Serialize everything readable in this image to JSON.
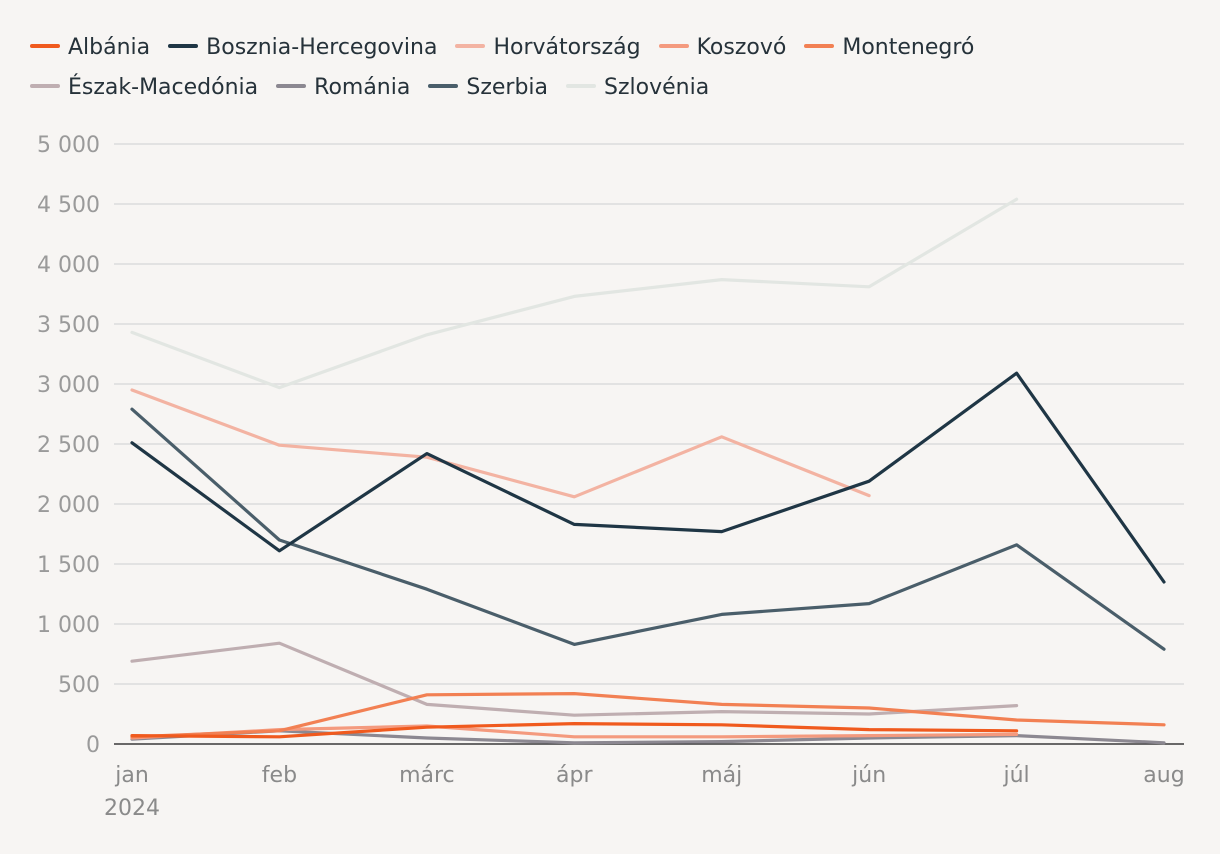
{
  "chart_data": {
    "type": "line",
    "title": "",
    "xlabel": "",
    "ylabel": "",
    "ylim": [
      0,
      5000
    ],
    "yticks": [
      0,
      500,
      1000,
      1500,
      2000,
      2500,
      3000,
      3500,
      4000,
      4500,
      5000
    ],
    "ytick_labels": [
      "0",
      "500",
      "1 000",
      "1 500",
      "2 000",
      "2 500",
      "3 000",
      "3 500",
      "4 000",
      "4 500",
      "5 000"
    ],
    "categories": [
      "jan",
      "feb",
      "márc",
      "ápr",
      "máj",
      "jún",
      "júl",
      "aug"
    ],
    "year_label": "2024",
    "grid": true,
    "legend_position": "top",
    "series": [
      {
        "name": "Albánia",
        "color": "#f05a1e",
        "values": [
          70,
          60,
          140,
          170,
          160,
          120,
          110,
          null
        ]
      },
      {
        "name": "Bosznia-Hercegovina",
        "color": "#1f3645",
        "values": [
          2510,
          1610,
          2420,
          1830,
          1770,
          2190,
          3090,
          1350
        ]
      },
      {
        "name": "Horvátország",
        "color": "#f3b3a2",
        "values": [
          2950,
          2490,
          2390,
          2060,
          2560,
          2070,
          null,
          null
        ]
      },
      {
        "name": "Koszovó",
        "color": "#f49a7e",
        "values": [
          50,
          120,
          150,
          60,
          60,
          70,
          80,
          null
        ]
      },
      {
        "name": "Montenegró",
        "color": "#f28053",
        "values": [
          60,
          110,
          410,
          420,
          330,
          300,
          200,
          160
        ]
      },
      {
        "name": "Észak-Macedónia",
        "color": "#bfaeb1",
        "values": [
          690,
          840,
          330,
          240,
          270,
          250,
          320,
          null
        ]
      },
      {
        "name": "Románia",
        "color": "#8c8891",
        "values": [
          40,
          110,
          50,
          10,
          20,
          50,
          70,
          10
        ]
      },
      {
        "name": "Szerbia",
        "color": "#4a5e6a",
        "values": [
          2790,
          1700,
          1290,
          830,
          1080,
          1170,
          1660,
          790
        ]
      },
      {
        "name": "Szlovénia",
        "color": "#e2e6e2",
        "values": [
          3430,
          2970,
          3410,
          3730,
          3870,
          3810,
          4540,
          null
        ]
      }
    ]
  },
  "legend": {
    "items": [
      {
        "label": "Albánia"
      },
      {
        "label": "Bosznia-Hercegovina"
      },
      {
        "label": "Horvátország"
      },
      {
        "label": "Koszovó"
      },
      {
        "label": "Montenegró"
      },
      {
        "label": "Észak-Macedónia"
      },
      {
        "label": "Románia"
      },
      {
        "label": "Szerbia"
      },
      {
        "label": "Szlovénia"
      }
    ]
  }
}
